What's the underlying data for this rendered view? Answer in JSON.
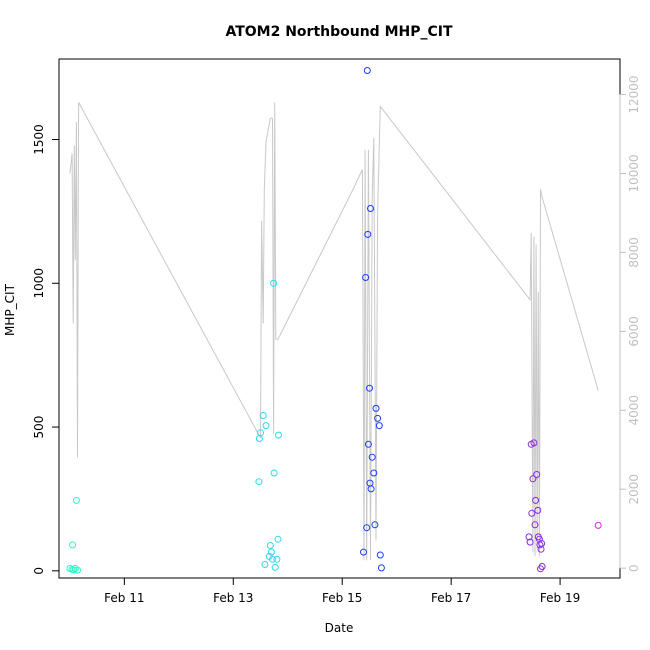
{
  "chart_data": {
    "type": "scatter",
    "title": "ATOM2 Northbound MHP_CIT",
    "xlabel": "Date",
    "ylabel": "MHP_CIT",
    "xlim": [
      9.8,
      20.1
    ],
    "ylim": [
      -25,
      1780
    ],
    "y2lim": [
      -250,
      12900
    ],
    "x_ticks": [
      {
        "value": 11,
        "label": "Feb 11"
      },
      {
        "value": 13,
        "label": "Feb 13"
      },
      {
        "value": 15,
        "label": "Feb 15"
      },
      {
        "value": 17,
        "label": "Feb 17"
      },
      {
        "value": 19,
        "label": "Feb 19"
      }
    ],
    "y_ticks": [
      0,
      500,
      1000,
      1500
    ],
    "y_tick_labels": [
      "0",
      "500",
      "1000",
      "1500"
    ],
    "y2_ticks": [
      0,
      2000,
      4000,
      6000,
      8000,
      10000,
      12000
    ],
    "y2_tick_labels": [
      "0",
      "2000",
      "4000",
      "6000",
      "8000",
      "10000",
      "12000"
    ],
    "grid": false,
    "colors": {
      "line": "#c8c8c8",
      "axis": "#000000",
      "axis_right": "#c0c0c0"
    },
    "series": [
      {
        "kind": "line",
        "axis": "right",
        "color": "#c8c8c8",
        "points": [
          [
            10.0,
            10000
          ],
          [
            10.04,
            10500
          ],
          [
            10.06,
            6200
          ],
          [
            10.08,
            10700
          ],
          [
            10.1,
            7800
          ],
          [
            10.12,
            11300
          ],
          [
            10.14,
            2800
          ],
          [
            10.16,
            11800
          ],
          [
            13.5,
            3300
          ],
          [
            13.52,
            8800
          ],
          [
            13.55,
            6200
          ],
          [
            13.57,
            9600
          ],
          [
            13.6,
            10800
          ],
          [
            13.68,
            11400
          ],
          [
            13.72,
            11400
          ],
          [
            13.74,
            3400
          ],
          [
            13.76,
            11800
          ],
          [
            13.78,
            5800
          ],
          [
            13.82,
            5800
          ],
          [
            15.2,
            9600
          ],
          [
            15.37,
            10100
          ],
          [
            15.4,
            200
          ],
          [
            15.42,
            10600
          ],
          [
            15.45,
            200
          ],
          [
            15.48,
            10600
          ],
          [
            15.52,
            200
          ],
          [
            15.55,
            9400
          ],
          [
            15.58,
            10900
          ],
          [
            15.62,
            700
          ],
          [
            15.65,
            9000
          ],
          [
            15.7,
            11700
          ],
          [
            18.45,
            6800
          ],
          [
            18.47,
            8500
          ],
          [
            18.5,
            400
          ],
          [
            18.52,
            8400
          ],
          [
            18.54,
            300
          ],
          [
            18.56,
            8200
          ],
          [
            18.58,
            500
          ],
          [
            18.6,
            7000
          ],
          [
            18.62,
            300
          ],
          [
            18.64,
            9600
          ],
          [
            18.67,
            9400
          ],
          [
            19.7,
            4500
          ]
        ]
      },
      {
        "kind": "scatter",
        "name": "",
        "points": [
          [
            10.0,
            8,
            "#2df5c8"
          ],
          [
            10.04,
            5,
            "#2df5c8"
          ],
          [
            10.05,
            90,
            "#2df5c8"
          ],
          [
            10.07,
            3,
            "#2df5c8"
          ],
          [
            10.1,
            8,
            "#2df5c8"
          ],
          [
            10.12,
            245,
            "#2df5c8"
          ],
          [
            10.14,
            2,
            "#2df5c8"
          ]
        ]
      },
      {
        "kind": "scatter",
        "name": "",
        "points": [
          [
            13.47,
            310,
            "#33d6f0"
          ],
          [
            13.48,
            460,
            "#33d6f0"
          ],
          [
            13.5,
            480,
            "#33d6f0"
          ],
          [
            13.55,
            540,
            "#33d6f0"
          ],
          [
            13.58,
            22,
            "#33d6f0"
          ],
          [
            13.6,
            505,
            "#33d6f0"
          ],
          [
            13.66,
            50,
            "#33d6f0"
          ],
          [
            13.68,
            88,
            "#33d6f0"
          ],
          [
            13.7,
            65,
            "#33d6f0"
          ],
          [
            13.72,
            40,
            "#33d6f0"
          ],
          [
            13.74,
            1000,
            "#33d6f0"
          ],
          [
            13.75,
            340,
            "#33d6f0"
          ],
          [
            13.77,
            12,
            "#33d6f0"
          ],
          [
            13.8,
            40,
            "#33d6f0"
          ],
          [
            13.82,
            110,
            "#33d6f0"
          ],
          [
            13.83,
            472,
            "#33d6f0"
          ]
        ]
      },
      {
        "kind": "scatter",
        "name": "",
        "points": [
          [
            15.39,
            65,
            "#1a3ff0"
          ],
          [
            15.43,
            1020,
            "#1a3ff0"
          ],
          [
            15.45,
            150,
            "#1a3ff0"
          ],
          [
            15.46,
            1740,
            "#1a3ff0"
          ],
          [
            15.47,
            1170,
            "#1a3ff0"
          ],
          [
            15.48,
            440,
            "#1a3ff0"
          ],
          [
            15.5,
            635,
            "#1a3ff0"
          ],
          [
            15.51,
            305,
            "#1a3ff0"
          ],
          [
            15.52,
            1260,
            "#1a3ff0"
          ],
          [
            15.53,
            285,
            "#1a3ff0"
          ],
          [
            15.55,
            395,
            "#1a3ff0"
          ],
          [
            15.58,
            340,
            "#1a3ff0"
          ],
          [
            15.6,
            160,
            "#1a3ff0"
          ],
          [
            15.62,
            565,
            "#1a3ff0"
          ],
          [
            15.65,
            530,
            "#1a3ff0"
          ],
          [
            15.68,
            505,
            "#1a3ff0"
          ],
          [
            15.7,
            55,
            "#1a3ff0"
          ],
          [
            15.72,
            10,
            "#1a3ff0"
          ]
        ]
      },
      {
        "kind": "scatter",
        "name": "",
        "points": [
          [
            18.43,
            118,
            "#8a2be2"
          ],
          [
            18.45,
            100,
            "#8a2be2"
          ],
          [
            18.47,
            440,
            "#8a2be2"
          ],
          [
            18.48,
            200,
            "#8a2be2"
          ],
          [
            18.5,
            320,
            "#8a2be2"
          ],
          [
            18.52,
            445,
            "#8a2be2"
          ],
          [
            18.54,
            160,
            "#8a2be2"
          ],
          [
            18.55,
            245,
            "#8a2be2"
          ],
          [
            18.57,
            335,
            "#8a2be2"
          ],
          [
            18.59,
            210,
            "#8a2be2"
          ],
          [
            18.6,
            118,
            "#8a2be2"
          ],
          [
            18.62,
            110,
            "#8a2be2"
          ],
          [
            18.63,
            90,
            "#8a2be2"
          ],
          [
            18.64,
            7,
            "#8a2be2"
          ],
          [
            18.65,
            75,
            "#8a2be2"
          ],
          [
            18.66,
            95,
            "#8a2be2"
          ],
          [
            18.67,
            15,
            "#8a2be2"
          ]
        ]
      },
      {
        "kind": "scatter",
        "name": "",
        "points": [
          [
            19.7,
            158,
            "#e020e0"
          ]
        ]
      }
    ]
  }
}
